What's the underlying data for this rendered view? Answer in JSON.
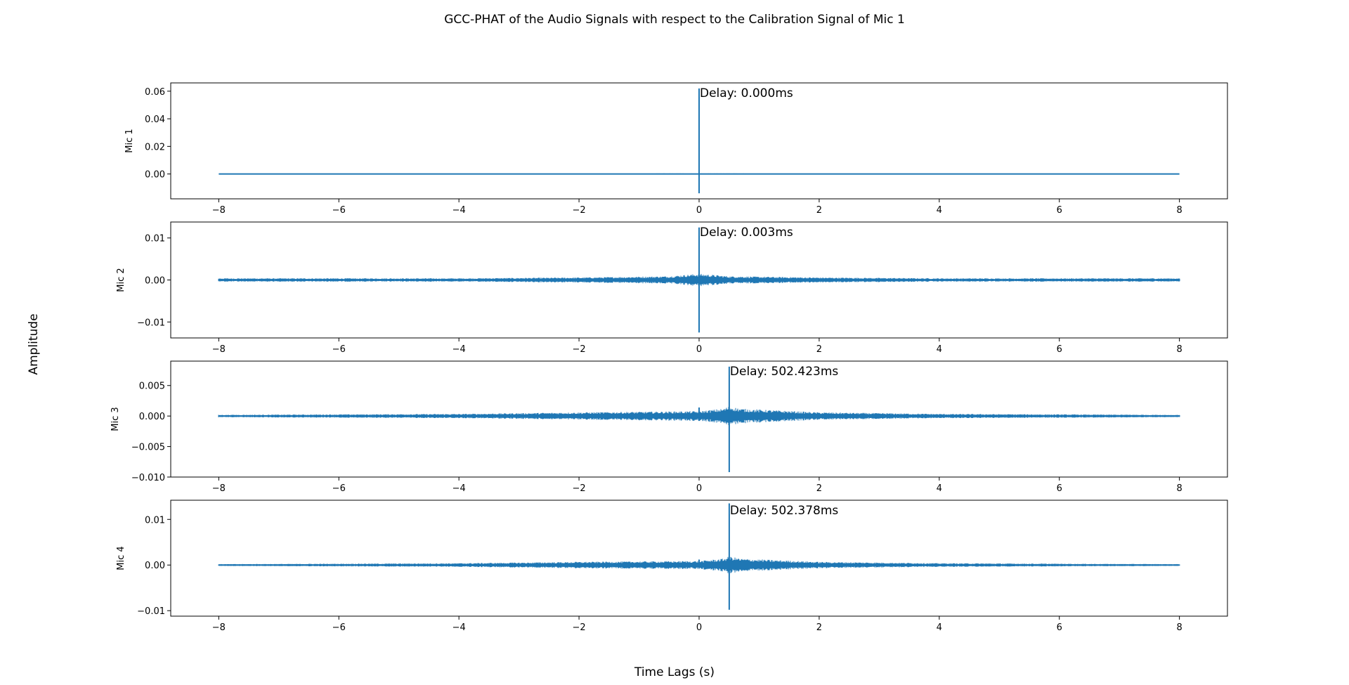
{
  "figure": {
    "title": "GCC-PHAT of the Audio Signals with respect to the Calibration Signal of Mic 1",
    "xlabel": "Time Lags (s)",
    "ylabel": "Amplitude"
  },
  "colors": {
    "line": "#1f77b4",
    "axes": "#000000",
    "background": "#ffffff"
  },
  "chart_data": [
    {
      "type": "line",
      "ylabel": "Mic 1",
      "annotation": "Delay: 0.000ms",
      "xlim": [
        -8.8,
        8.8
      ],
      "ylim": [
        -0.018,
        0.066
      ],
      "xticks": [
        -8,
        -6,
        -4,
        -2,
        0,
        2,
        4,
        6,
        8
      ],
      "xtick_labels": [
        "−8",
        "−6",
        "−4",
        "−2",
        "0",
        "2",
        "4",
        "6",
        "8"
      ],
      "yticks": [
        0.0,
        0.02,
        0.04,
        0.06
      ],
      "ytick_labels": [
        "0.00",
        "0.02",
        "0.04",
        "0.06"
      ],
      "series": [
        {
          "x_range": [
            -8,
            8
          ],
          "peak_x": 0.0,
          "peak_max": 0.062,
          "peak_min": -0.014,
          "noise_env": [
            {
              "x": -8,
              "a": 0.0
            },
            {
              "x": -0.8,
              "a": 0.0
            },
            {
              "x": -0.75,
              "a": 0.0004
            },
            {
              "x": 0.75,
              "a": 0.0004
            },
            {
              "x": 0.8,
              "a": 0.0
            },
            {
              "x": 8,
              "a": 0.0
            }
          ],
          "spikes": []
        }
      ]
    },
    {
      "type": "line",
      "ylabel": "Mic 2",
      "annotation": "Delay: 0.003ms",
      "xlim": [
        -8.8,
        8.8
      ],
      "ylim": [
        -0.0138,
        0.0138
      ],
      "xticks": [
        -8,
        -6,
        -4,
        -2,
        0,
        2,
        4,
        6,
        8
      ],
      "xtick_labels": [
        "−8",
        "−6",
        "−4",
        "−2",
        "0",
        "2",
        "4",
        "6",
        "8"
      ],
      "yticks": [
        -0.01,
        0.0,
        0.01
      ],
      "ytick_labels": [
        "−0.01",
        "0.00",
        "0.01"
      ],
      "series": [
        {
          "x_range": [
            -8,
            8
          ],
          "peak_x": 0.0,
          "peak_max": 0.0125,
          "peak_min": -0.0125,
          "noise_env": [
            {
              "x": -8,
              "a": 0.0004
            },
            {
              "x": -4,
              "a": 0.0004
            },
            {
              "x": -2,
              "a": 0.0006
            },
            {
              "x": -0.5,
              "a": 0.0009
            },
            {
              "x": 0,
              "a": 0.0015
            },
            {
              "x": 0.5,
              "a": 0.0009
            },
            {
              "x": 2,
              "a": 0.0006
            },
            {
              "x": 4,
              "a": 0.0004
            },
            {
              "x": 8,
              "a": 0.0004
            }
          ],
          "spikes": []
        }
      ]
    },
    {
      "type": "line",
      "ylabel": "Mic 3",
      "annotation": "Delay: 502.423ms",
      "xlim": [
        -8.8,
        8.8
      ],
      "ylim": [
        -0.01,
        0.009
      ],
      "xticks": [
        -8,
        -6,
        -4,
        -2,
        0,
        2,
        4,
        6,
        8
      ],
      "xtick_labels": [
        "−8",
        "−6",
        "−4",
        "−2",
        "0",
        "2",
        "4",
        "6",
        "8"
      ],
      "yticks": [
        -0.01,
        -0.005,
        0.0,
        0.005
      ],
      "ytick_labels": [
        "−0.010",
        "−0.005",
        "0.000",
        "0.005"
      ],
      "series": [
        {
          "x_range": [
            -8,
            8
          ],
          "peak_x": 0.502,
          "peak_max": 0.0081,
          "peak_min": -0.0092,
          "noise_env": [
            {
              "x": -8,
              "a": 0.0002
            },
            {
              "x": -4,
              "a": 0.00035
            },
            {
              "x": -2,
              "a": 0.0006
            },
            {
              "x": 0,
              "a": 0.0008
            },
            {
              "x": 0.4,
              "a": 0.0012
            },
            {
              "x": 0.502,
              "a": 0.0016
            },
            {
              "x": 0.7,
              "a": 0.0012
            },
            {
              "x": 2,
              "a": 0.0006
            },
            {
              "x": 4,
              "a": 0.00035
            },
            {
              "x": 8,
              "a": 0.0002
            }
          ],
          "spikes": [
            {
              "x": 0.0,
              "max": 0.0014,
              "min": -0.0008
            }
          ]
        }
      ]
    },
    {
      "type": "line",
      "ylabel": "Mic 4",
      "annotation": "Delay: 502.378ms",
      "xlim": [
        -8.8,
        8.8
      ],
      "ylim": [
        -0.0112,
        0.0142
      ],
      "xticks": [
        -8,
        -6,
        -4,
        -2,
        0,
        2,
        4,
        6,
        8
      ],
      "xtick_labels": [
        "−8",
        "−6",
        "−4",
        "−2",
        "0",
        "2",
        "4",
        "6",
        "8"
      ],
      "yticks": [
        -0.01,
        0.0,
        0.01
      ],
      "ytick_labels": [
        "−0.01",
        "0.00",
        "0.01"
      ],
      "series": [
        {
          "x_range": [
            -8,
            8
          ],
          "peak_x": 0.502,
          "peak_max": 0.0135,
          "peak_min": -0.0098,
          "noise_env": [
            {
              "x": -8,
              "a": 0.0002
            },
            {
              "x": -4,
              "a": 0.0004
            },
            {
              "x": -2,
              "a": 0.0007
            },
            {
              "x": 0,
              "a": 0.0009
            },
            {
              "x": 0.4,
              "a": 0.0014
            },
            {
              "x": 0.502,
              "a": 0.0019
            },
            {
              "x": 0.7,
              "a": 0.0014
            },
            {
              "x": 2,
              "a": 0.0007
            },
            {
              "x": 4,
              "a": 0.0004
            },
            {
              "x": 8,
              "a": 0.0002
            }
          ],
          "spikes": [
            {
              "x": 0.0,
              "max": 0.0012,
              "min": -0.0006
            }
          ]
        }
      ]
    }
  ]
}
